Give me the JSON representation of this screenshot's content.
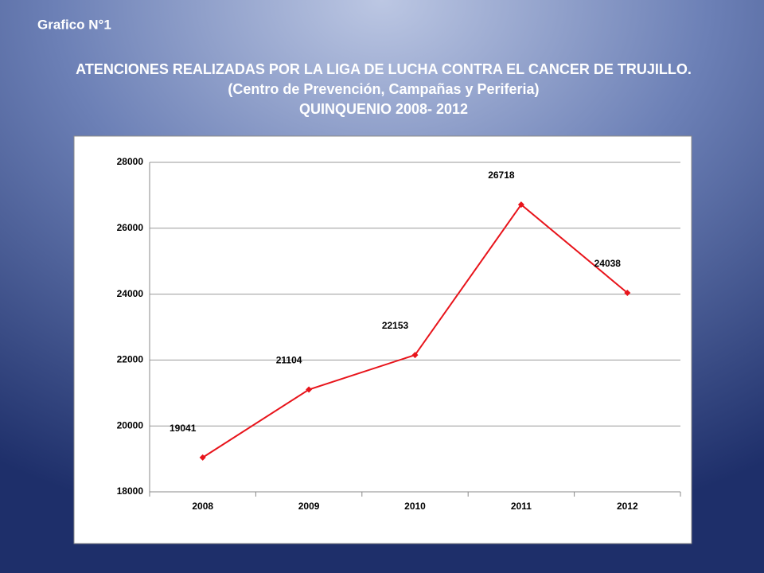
{
  "chart_data": {
    "type": "line",
    "caption": "Grafico N°1",
    "title": "ATENCIONES REALIZADAS POR LA LIGA DE LUCHA CONTRA EL CANCER DE TRUJILLO.",
    "subtitle": "(Centro de Prevención, Campañas y Periferia)",
    "subtitle2": "QUINQUENIO 2008- 2012",
    "categories": [
      "2008",
      "2009",
      "2010",
      "2011",
      "2012"
    ],
    "values": [
      19041,
      21104,
      22153,
      26718,
      24038
    ],
    "color": "#e8141b",
    "ylim": [
      18000,
      28000
    ],
    "yticks": [
      18000,
      20000,
      22000,
      24000,
      26000,
      28000
    ],
    "grid": true
  }
}
